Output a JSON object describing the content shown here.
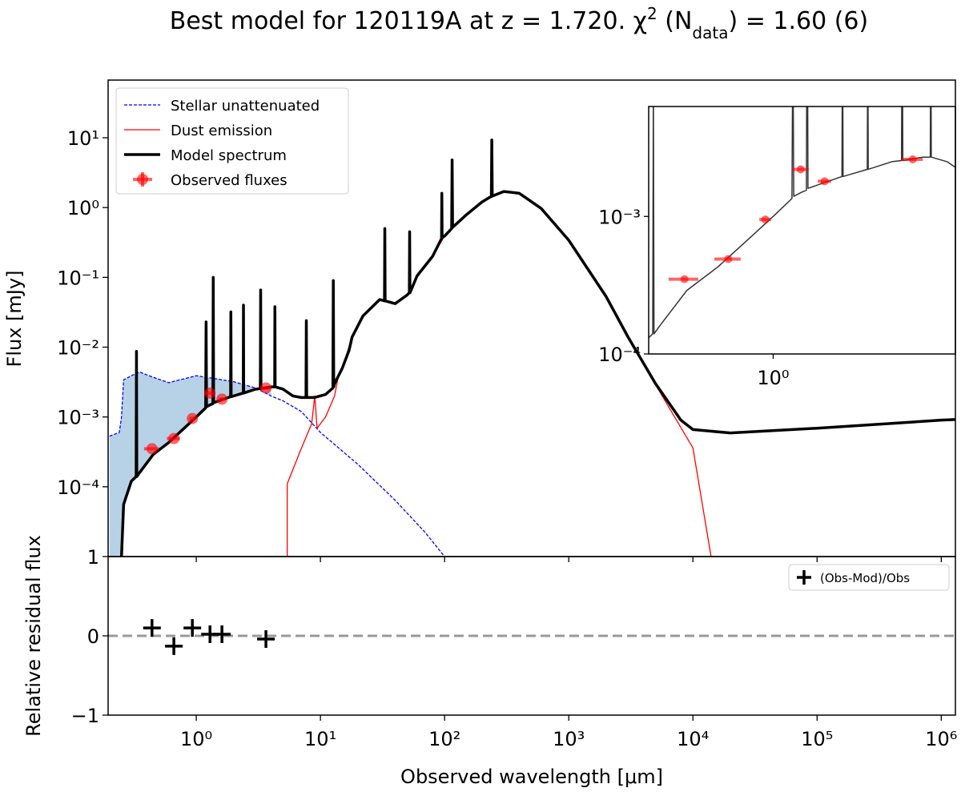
{
  "chart_data": [
    {
      "type": "line",
      "title": [
        "Best model for 120119A at z = 1.720. χ",
        "2",
        " (N",
        "data",
        ") = 1.60 (6)"
      ],
      "ylabel": "Flux [mJy]",
      "log_x": true,
      "log_y": true,
      "ylim": [
        1e-05,
        67
      ],
      "yticks": [
        {
          "value": 0.0001,
          "label": "10⁻⁴"
        },
        {
          "value": 0.001,
          "label": "10⁻³"
        },
        {
          "value": 0.01,
          "label": "10⁻²"
        },
        {
          "value": 0.1,
          "label": "10⁻¹"
        },
        {
          "value": 1,
          "label": "10⁰"
        },
        {
          "value": 10,
          "label": "10¹"
        }
      ],
      "legend": "upper left",
      "series": [
        {
          "name": "Stellar unattenuated",
          "color": "#0000ff",
          "style": "dashed",
          "fill": "#b7d1e7",
          "x": [
            0.2,
            0.24,
            0.25,
            0.26,
            0.3,
            0.35,
            0.45,
            0.6,
            1.0,
            2.0,
            3.0,
            4.0,
            5.0,
            7.0,
            10,
            20,
            40,
            70,
            100
          ],
          "values": [
            0.00053,
            0.0006,
            0.001,
            0.0034,
            0.0039,
            0.0044,
            0.0037,
            0.0031,
            0.0039,
            0.0032,
            0.0026,
            0.002,
            0.0017,
            0.0012,
            0.0006,
            0.00021,
            6.4e-05,
            2.2e-05,
            1e-05
          ]
        },
        {
          "name": "Dust emission",
          "color": "#ff0000",
          "style": "solid",
          "x": [
            5.4,
            5.4,
            7,
            8.5,
            9,
            9.4,
            11,
            13,
            14,
            15,
            18,
            22,
            30,
            40,
            50,
            60,
            80,
            100,
            150,
            200,
            300,
            400,
            600,
            1000,
            2000,
            3000,
            5000,
            10000,
            14000
          ],
          "values": [
            1e-05,
            0.00011,
            0.00035,
            0.0008,
            0.002,
            0.00069,
            0.001,
            0.002,
            0.004,
            0.005,
            0.014,
            0.028,
            0.048,
            0.042,
            0.056,
            0.105,
            0.2,
            0.39,
            0.79,
            1.2,
            1.7,
            1.6,
            0.97,
            0.34,
            0.053,
            0.014,
            0.0029,
            0.00036,
            1e-05
          ]
        },
        {
          "name": "Model spectrum",
          "color": "#000000",
          "style": "solid",
          "x": [
            0.25,
            0.26,
            0.3,
            0.328,
            0.33,
            0.332,
            0.35,
            0.45,
            0.6,
            0.8,
            1.0,
            1.19,
            1.2,
            1.21,
            1.3,
            1.36,
            1.37,
            1.38,
            1.89,
            1.9,
            1.91,
            2.0,
            2.39,
            2.4,
            2.41,
            3.0,
            3.28,
            3.3,
            3.32,
            4.0,
            4.28,
            4.3,
            4.32,
            5.0,
            6.0,
            7.0,
            7.65,
            7.7,
            7.75,
            9.0,
            11.0,
            12.6,
            12.7,
            12.8,
            13.0,
            15.0,
            17.0,
            18.0,
            22.0,
            30.0,
            32.8,
            33.0,
            33.2,
            40.0,
            50.0,
            52.0,
            52.3,
            52.6,
            60.0,
            80.0,
            94.5,
            95.0,
            95.5,
            100,
            114,
            115,
            116,
            150,
            200,
            238,
            240,
            242,
            300,
            400,
            600,
            1000,
            2000,
            3000,
            5000,
            8000,
            10000,
            20000,
            100000,
            1000000,
            1300000
          ],
          "values": [
            1e-05,
            5.6e-05,
            0.00012,
            0.00014,
            0.0087,
            0.00014,
            0.00016,
            0.00029,
            0.00043,
            0.00069,
            0.001,
            0.00135,
            0.023,
            0.0014,
            0.0015,
            0.00155,
            0.1,
            0.0016,
            0.00195,
            0.032,
            0.00195,
            0.002,
            0.0022,
            0.04,
            0.0022,
            0.0025,
            0.00255,
            0.066,
            0.00255,
            0.0027,
            0.0027,
            0.038,
            0.0027,
            0.0025,
            0.002,
            0.0019,
            0.0019,
            0.024,
            0.0019,
            0.0019,
            0.0021,
            0.0026,
            0.09,
            0.0027,
            0.003,
            0.005,
            0.009,
            0.014,
            0.028,
            0.048,
            0.046,
            0.5,
            0.046,
            0.042,
            0.056,
            0.06,
            0.45,
            0.06,
            0.105,
            0.2,
            0.36,
            1.6,
            0.37,
            0.39,
            0.5,
            4.8,
            0.52,
            0.79,
            1.2,
            1.45,
            9.3,
            1.46,
            1.7,
            1.6,
            0.97,
            0.34,
            0.053,
            0.014,
            0.003,
            0.0009,
            0.00066,
            0.00059,
            0.00069,
            0.0009,
            0.00092
          ]
        },
        {
          "name": "Observed fluxes",
          "color": "#ff0000",
          "style": "points",
          "x": [
            0.44,
            0.66,
            0.93,
            1.29,
            1.61,
            3.64
          ],
          "xerr": [
            0.06,
            0.08,
            0.05,
            0.1,
            0.1,
            0.35
          ],
          "values": [
            0.00035,
            0.00049,
            0.00095,
            0.0022,
            0.0018,
            0.0026
          ]
        }
      ],
      "inset": {
        "xlim": [
          0.316,
          5.4
        ],
        "ylim": [
          0.0001,
          0.0063
        ],
        "xticks": [
          {
            "value": 1,
            "label": "10⁰"
          }
        ],
        "yticks": [
          {
            "value": 0.001,
            "label": "10⁻³"
          },
          {
            "value": 0.0001,
            "label": "10⁻⁴"
          }
        ]
      }
    },
    {
      "type": "scatter",
      "ylabel": "Relative residual flux",
      "xlabel": "Observed wavelength [μm]",
      "log_x": true,
      "xlim": [
        0.195,
        1300000
      ],
      "xticks": [
        {
          "value": 1,
          "label": "10⁰"
        },
        {
          "value": 10,
          "label": "10¹"
        },
        {
          "value": 100,
          "label": "10²"
        },
        {
          "value": 1000,
          "label": "10³"
        },
        {
          "value": 10000,
          "label": "10⁴"
        },
        {
          "value": 100000,
          "label": "10⁵"
        },
        {
          "value": 1000000,
          "label": "10⁶"
        }
      ],
      "ylim": [
        -1,
        1
      ],
      "yticks": [
        1,
        0,
        {
          "value": -1,
          "label": "−1"
        }
      ],
      "hline": 0,
      "legend": "upper right",
      "series": [
        {
          "name": "(Obs-Mod)/Obs",
          "color": "#000000",
          "x": [
            0.44,
            0.66,
            0.93,
            1.29,
            1.61,
            3.64
          ],
          "values": [
            0.1,
            -0.13,
            0.1,
            0.02,
            0.02,
            -0.04
          ]
        }
      ]
    }
  ]
}
